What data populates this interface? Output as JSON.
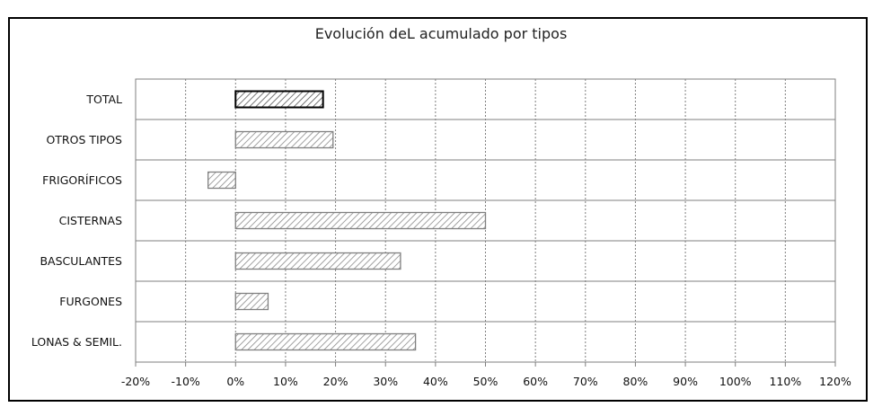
{
  "chart_data": {
    "type": "bar",
    "orientation": "horizontal",
    "title": "Evolución deL acumulado por tipos",
    "categories": [
      "TOTAL",
      "OTROS TIPOS",
      "FRIGORÍFICOS",
      "CISTERNAS",
      "BASCULANTES",
      "FURGONES",
      "LONAS & SEMIL."
    ],
    "values": [
      17.5,
      19.5,
      -5.5,
      50,
      33,
      6.5,
      36
    ],
    "highlight_category": "TOTAL",
    "xlim": [
      -20,
      120
    ],
    "xticks": [
      "-20%",
      "-10%",
      "0%",
      "10%",
      "20%",
      "30%",
      "40%",
      "50%",
      "60%",
      "70%",
      "80%",
      "90%",
      "100%",
      "110%",
      "120%"
    ],
    "xtick_values": [
      -20,
      -10,
      0,
      10,
      20,
      30,
      40,
      50,
      60,
      70,
      80,
      90,
      100,
      110,
      120
    ],
    "grid": "vertical dashed, horizontal solid",
    "legend": "none",
    "colors": {
      "bar_fill": "#ffffff",
      "hatch": "#8a8a8a",
      "bar_edge": "#808080",
      "highlight_edge": "#000000",
      "grid": "#7f7f7f"
    }
  }
}
